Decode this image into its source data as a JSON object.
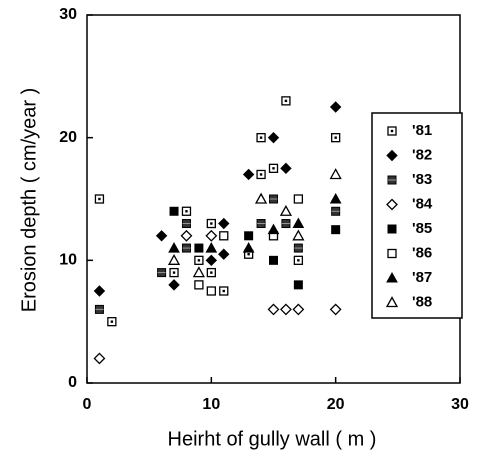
{
  "chart_data": {
    "type": "scatter",
    "x_label": "Heirht of gully wall ( m )",
    "y_label": "Erosion depth ( cm/year )",
    "xlim": [
      0,
      30
    ],
    "xticks": [
      0,
      10,
      20,
      30
    ],
    "ylim": [
      0,
      30
    ],
    "yticks": [
      0,
      10,
      20,
      30
    ],
    "legend": "right",
    "series": [
      {
        "name": "'81",
        "color": "#000000",
        "marker": "dotted-square",
        "x": [
          1,
          2,
          7,
          8,
          9,
          10,
          10,
          11,
          13,
          14,
          14,
          15,
          16,
          17,
          20
        ],
        "values": [
          15,
          5,
          9,
          14,
          10,
          13,
          9,
          7.5,
          10.5,
          20,
          17,
          17.5,
          23,
          10,
          20
        ]
      },
      {
        "name": "'82",
        "color": "#000000",
        "marker": "filled-diamond",
        "x": [
          1,
          6,
          7,
          10,
          11,
          11,
          13,
          15,
          16,
          20
        ],
        "values": [
          7.5,
          12,
          8,
          10,
          13,
          10.5,
          17,
          20,
          17.5,
          22.5
        ]
      },
      {
        "name": "'83",
        "color": "#000000",
        "marker": "hatched-square",
        "x": [
          1,
          6,
          8,
          8,
          14,
          15,
          16,
          17,
          20
        ],
        "values": [
          6,
          9,
          13,
          11,
          13,
          15,
          13,
          11,
          14
        ]
      },
      {
        "name": "'84",
        "color": "#000000",
        "marker": "open-diamond",
        "x": [
          1,
          8,
          10,
          15,
          16,
          17,
          20
        ],
        "values": [
          2,
          12,
          12,
          6,
          6,
          6,
          6
        ]
      },
      {
        "name": "'85",
        "color": "#000000",
        "marker": "filled-square",
        "x": [
          7,
          9,
          13,
          15,
          17,
          20
        ],
        "values": [
          14,
          11,
          12,
          10,
          8,
          12.5
        ]
      },
      {
        "name": "'86",
        "color": "#000000",
        "marker": "open-square",
        "x": [
          9,
          10,
          11,
          15,
          17
        ],
        "values": [
          8,
          7.5,
          12,
          12,
          15
        ]
      },
      {
        "name": "'87",
        "color": "#000000",
        "marker": "filled-triangle",
        "x": [
          7,
          10,
          13,
          15,
          17,
          20
        ],
        "values": [
          11,
          11,
          11,
          12.5,
          13,
          15
        ]
      },
      {
        "name": "'88",
        "color": "#000000",
        "marker": "open-triangle",
        "x": [
          7,
          9,
          14,
          16,
          17,
          20
        ],
        "values": [
          10,
          9,
          15,
          14,
          12,
          17
        ]
      }
    ]
  }
}
